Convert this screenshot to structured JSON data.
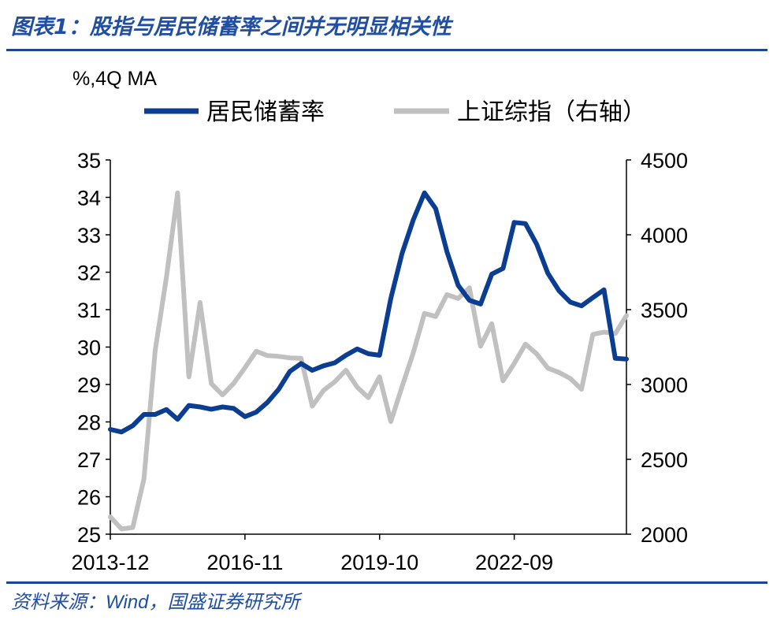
{
  "header": {
    "title": "图表1：股指与居民储蓄率之间并无明显相关性"
  },
  "footer": {
    "source_prefix": "资料来源：",
    "source_name": "Wind",
    "source_suffix": "，国盛证券研究所"
  },
  "colors": {
    "title": "#1f4ea3",
    "rule": "#1c4595",
    "saving_rate": "#0b3d91",
    "index": "#c0c0c0"
  },
  "chart_data": {
    "type": "line",
    "unit_label": "%,4Q MA",
    "x_ticks": [
      "2013-12",
      "2016-11",
      "2019-10",
      "2022-09"
    ],
    "x_tick_index": [
      0,
      12,
      24,
      36
    ],
    "left_axis": {
      "range": [
        25,
        35
      ],
      "ticks": [
        35,
        34,
        33,
        32,
        31,
        30,
        29,
        28,
        27,
        26,
        25
      ]
    },
    "right_axis": {
      "range": [
        2000,
        4500
      ],
      "ticks": [
        4500,
        4000,
        3500,
        3000,
        2500,
        2000
      ]
    },
    "legend": {
      "position": "top"
    },
    "grid": false,
    "series": [
      {
        "name": "居民储蓄率",
        "axis": "left",
        "values": [
          27.8,
          27.73,
          27.9,
          28.2,
          28.2,
          28.33,
          28.07,
          28.44,
          28.4,
          28.34,
          28.4,
          28.36,
          28.14,
          28.26,
          28.52,
          28.87,
          29.35,
          29.56,
          29.38,
          29.5,
          29.58,
          29.78,
          29.95,
          29.82,
          29.78,
          31.3,
          32.5,
          33.4,
          34.12,
          33.7,
          32.55,
          31.65,
          31.25,
          31.15,
          31.95,
          32.1,
          33.33,
          33.3,
          32.75,
          31.97,
          31.5,
          31.2,
          31.1,
          31.32,
          31.53,
          29.7,
          29.68
        ]
      },
      {
        "name": "上证综指（右轴）",
        "axis": "right",
        "values": [
          2116,
          2035,
          2045,
          2370,
          3230,
          3716,
          4280,
          3051,
          3548,
          3006,
          2930,
          3008,
          3112,
          3222,
          3193,
          3188,
          3178,
          3175,
          2855,
          2960,
          3018,
          3096,
          2982,
          2912,
          3051,
          2752,
          2985,
          3212,
          3475,
          3454,
          3600,
          3575,
          3646,
          3256,
          3406,
          3024,
          3140,
          3270,
          3205,
          3109,
          3080,
          3040,
          2968,
          3334,
          3350,
          3340,
          3460
        ]
      }
    ]
  }
}
